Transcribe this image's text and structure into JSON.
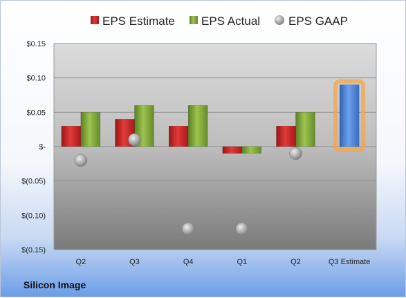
{
  "company_label": "Silicon Image",
  "colors": {
    "estimate": "#cc2222",
    "actual": "#7fa43a",
    "gaap": "#a8a8a8",
    "estimate_forward": "#4a86d8",
    "highlight": "#f5a64a"
  },
  "chart_data": {
    "type": "bar",
    "categories": [
      "Q2",
      "Q3",
      "Q4",
      "Q1",
      "Q2",
      "Q3 Estimate"
    ],
    "series": [
      {
        "name": "EPS Estimate",
        "kind": "bar",
        "values": [
          0.03,
          0.04,
          0.03,
          -0.01,
          0.03,
          0.09
        ]
      },
      {
        "name": "EPS Actual",
        "kind": "bar",
        "values": [
          0.05,
          0.06,
          0.06,
          -0.01,
          0.05,
          null
        ]
      },
      {
        "name": "EPS GAAP",
        "kind": "point",
        "values": [
          -0.02,
          0.01,
          -0.12,
          -0.12,
          -0.01,
          null
        ]
      }
    ],
    "ylim": [
      -0.15,
      0.15
    ],
    "yticks": [
      0.15,
      0.1,
      0.05,
      0,
      -0.05,
      -0.1,
      -0.15
    ],
    "ytick_labels": [
      "$0.15",
      "$0.10",
      "$0.05",
      "$-",
      "$(0.05)",
      "$(0.10)",
      "$(0.15)"
    ],
    "legend_position": "top",
    "grid": true
  }
}
